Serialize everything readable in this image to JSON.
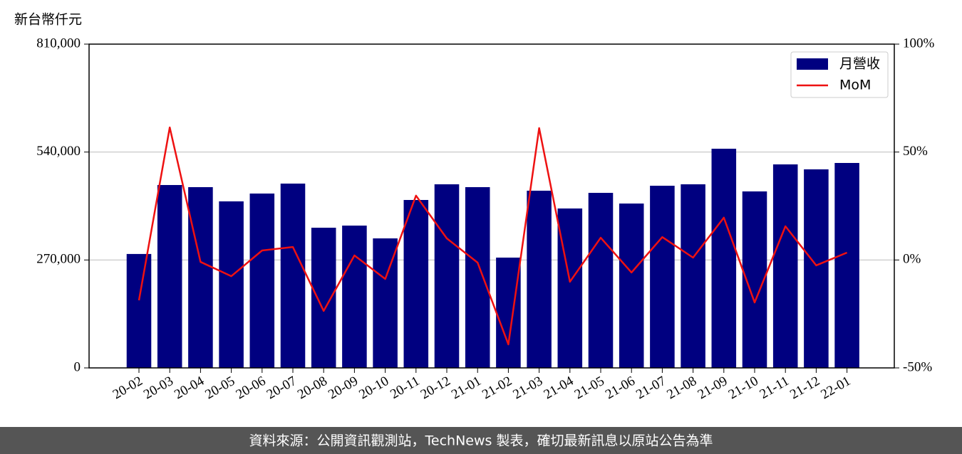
{
  "chart_data": {
    "type": "bar",
    "y_label": "新台幣仟元",
    "categories": [
      "20-02",
      "20-03",
      "20-04",
      "20-05",
      "20-06",
      "20-07",
      "20-08",
      "20-09",
      "20-10",
      "20-11",
      "20-12",
      "21-01",
      "21-02",
      "21-03",
      "21-04",
      "21-05",
      "21-06",
      "21-07",
      "21-08",
      "21-09",
      "21-10",
      "21-11",
      "21-12",
      "22-01"
    ],
    "series": [
      {
        "name": "月營收",
        "type": "bar",
        "color": "#000080",
        "values": [
          285000,
          457500,
          452200,
          416600,
          436200,
          461100,
          350700,
          356000,
          324000,
          420100,
          459300,
          452200,
          275900,
          443300,
          398800,
          437900,
          411200,
          455700,
          459300,
          548300,
          441500,
          509100,
          496700,
          512700
        ]
      },
      {
        "name": "MoM",
        "type": "line",
        "axis": "y2",
        "color": "#ee1111",
        "values": [
          -18.7,
          61.4,
          -0.9,
          -7.5,
          4.4,
          6.0,
          -23.6,
          2.1,
          -8.8,
          29.8,
          10.0,
          -1.2,
          -39.1,
          61.1,
          -10.1,
          10.3,
          -5.8,
          10.6,
          1.1,
          19.6,
          -19.7,
          15.6,
          -2.5,
          3.4
        ]
      }
    ],
    "ylim": [
      0,
      810000
    ],
    "yticks": [
      0,
      {
        "value": 270000,
        "label": "270,000"
      },
      {
        "value": 540000,
        "label": "540,000"
      },
      {
        "value": 810000,
        "label": "810,000"
      }
    ],
    "y2lim": [
      -50,
      100
    ],
    "y2ticks": [
      {
        "value": -50,
        "label": "-50%"
      },
      {
        "value": 0,
        "label": "0%"
      },
      {
        "value": 50,
        "label": "50%"
      },
      {
        "value": 100,
        "label": "100%"
      }
    ],
    "grid": true,
    "legend": "upper-right"
  },
  "footer": {
    "text": "資料來源：公開資訊觀測站，TechNews 製表，確切最新訊息以原站公告為準"
  }
}
